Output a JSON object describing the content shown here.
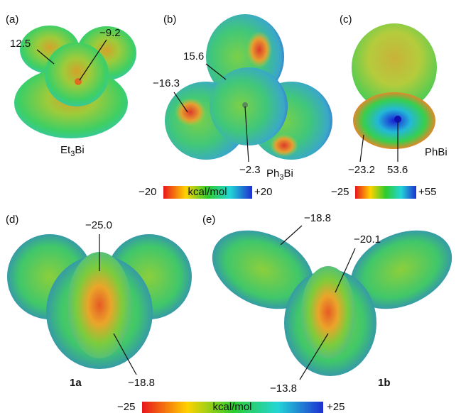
{
  "panels": [
    {
      "label": "(a)",
      "molecule": {
        "main": "Et",
        "sub": "3",
        "tail": "Bi"
      },
      "annotations": [
        "12.5",
        "−9.2"
      ]
    },
    {
      "label": "(b)",
      "molecule": {
        "main": "Ph",
        "sub": "3",
        "tail": "Bi"
      },
      "annotations": [
        "15.6",
        "−16.3",
        "−2.3"
      ]
    },
    {
      "label": "(c)",
      "molecule": {
        "main": "PhBi"
      },
      "annotations": [
        "−23.2",
        "53.6"
      ]
    },
    {
      "label": "(d)",
      "molecule": {
        "main": "1a"
      },
      "annotations": [
        "−25.0",
        "−18.8"
      ]
    },
    {
      "label": "(e)",
      "molecule": {
        "main": "1b"
      },
      "annotations": [
        "−18.8",
        "−20.1",
        "−13.8"
      ]
    }
  ],
  "colorbars": [
    {
      "min": "−20",
      "unit": "kcal/mol",
      "max": "+20"
    },
    {
      "min": "−25",
      "max": "+55"
    },
    {
      "min": "−25",
      "unit": "kcal/mol",
      "max": "+25"
    }
  ]
}
